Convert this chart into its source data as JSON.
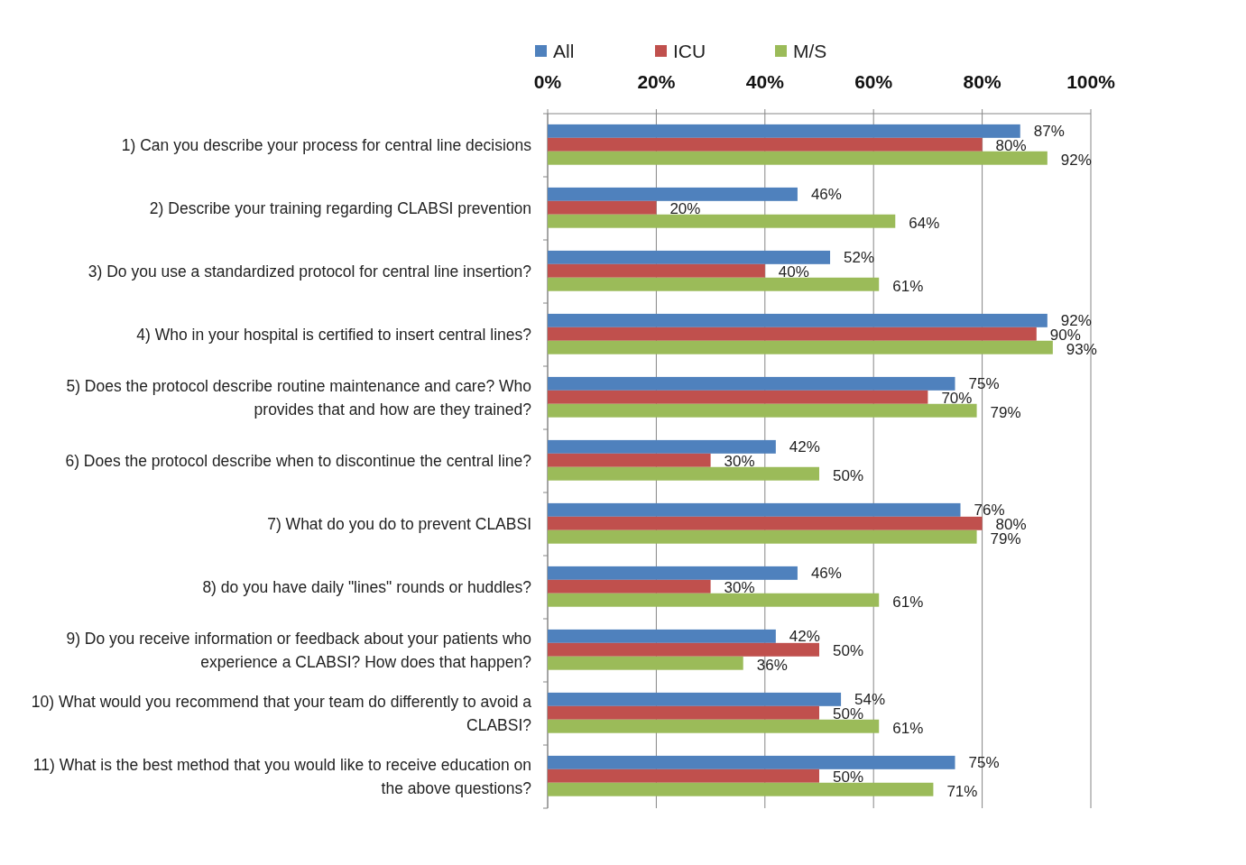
{
  "chart_data": {
    "type": "bar",
    "orientation": "horizontal",
    "categories": [
      "1) Can you describe your process for central line decisions",
      "2) Describe your training regarding CLABSI prevention",
      "3) Do you use a standardized protocol for central line insertion?",
      "4) Who in your hospital is certified to insert central lines?",
      "5) Does the protocol describe routine maintenance and care? Who provides that and how are they trained?",
      "6) Does the protocol describe when to discontinue the central line?",
      "7) What do you do to prevent CLABSI",
      "8) do you have daily  \"lines\" rounds or huddles?",
      "9) Do you receive information or feedback about your patients who experience a CLABSI? How does that happen?",
      "10) What would you recommend that your team do differently to avoid a CLABSI?",
      "11) What is the best method that you would like to receive education on the above questions?"
    ],
    "series": [
      {
        "name": "All",
        "color": "#4f81bd",
        "values": [
          87,
          46,
          52,
          92,
          75,
          42,
          76,
          46,
          42,
          54,
          75
        ],
        "value_labels": [
          "87%",
          "46%",
          "52%",
          "92%",
          "75%",
          "42%",
          "76%",
          "46%",
          "42%",
          "54%",
          "75%"
        ]
      },
      {
        "name": "ICU",
        "color": "#c0504d",
        "values": [
          80,
          20,
          40,
          90,
          70,
          30,
          80,
          30,
          50,
          50,
          50
        ],
        "value_labels": [
          "80%",
          "20%",
          "40%",
          "90%",
          "70%",
          "30%",
          "80%",
          "30%",
          "50%",
          "50%",
          "50%"
        ]
      },
      {
        "name": "M/S",
        "color": "#9bbb59",
        "values": [
          92,
          64,
          61,
          93,
          79,
          50,
          79,
          61,
          36,
          61,
          71
        ],
        "value_labels": [
          "92%",
          "64%",
          "61%",
          "93%",
          "79%",
          "50%",
          "79%",
          "61%",
          "36%",
          "61%",
          "71%"
        ]
      }
    ],
    "xlim": [
      0,
      100
    ],
    "xticks": [
      {
        "value": 0,
        "label": "0%"
      },
      {
        "value": 20,
        "label": "20%"
      },
      {
        "value": 40,
        "label": "40%"
      },
      {
        "value": 60,
        "label": "60%"
      },
      {
        "value": 80,
        "label": "80%"
      },
      {
        "value": 100,
        "label": "100%"
      }
    ],
    "grid": "x",
    "legend": "top"
  }
}
